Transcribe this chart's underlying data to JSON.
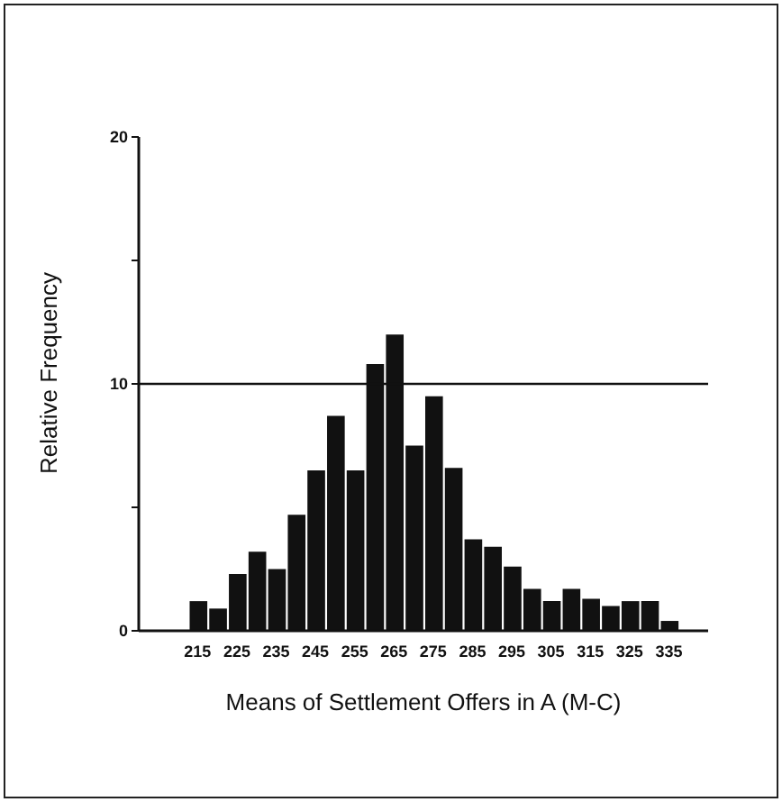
{
  "chart_data": {
    "type": "histogram",
    "xlabel": "Means of Settlement Offers in A (M-C)",
    "ylabel": "Relative Frequency",
    "bins": [
      212.5,
      217.5,
      222.5,
      227.5,
      232.5,
      237.5,
      242.5,
      247.5,
      252.5,
      257.5,
      262.5,
      267.5,
      272.5,
      277.5,
      282.5,
      287.5,
      292.5,
      297.5,
      302.5,
      307.5,
      312.5,
      317.5,
      322.5,
      327.5,
      332.5,
      337.5,
      342.5
    ],
    "values": [
      1.2,
      0.9,
      2.3,
      3.2,
      2.5,
      4.7,
      6.5,
      8.7,
      6.5,
      10.8,
      12.0,
      7.5,
      9.5,
      6.6,
      3.7,
      3.4,
      2.6,
      1.7,
      1.2,
      1.7,
      1.3,
      1.0,
      1.2,
      1.2,
      0.4,
      null
    ],
    "color": "#111111",
    "xlim": [
      200,
      345
    ],
    "xticks": [
      215,
      225,
      235,
      245,
      255,
      265,
      275,
      285,
      295,
      305,
      315,
      325,
      335
    ],
    "ylim": [
      0,
      20
    ],
    "yticks": [
      0,
      {
        "value": 5,
        "label": null
      },
      10,
      {
        "value": 15,
        "label": null
      },
      20
    ],
    "ref_lines": [
      {
        "axis": "y",
        "value": 10,
        "color": "#111111"
      }
    ],
    "grid": false
  }
}
